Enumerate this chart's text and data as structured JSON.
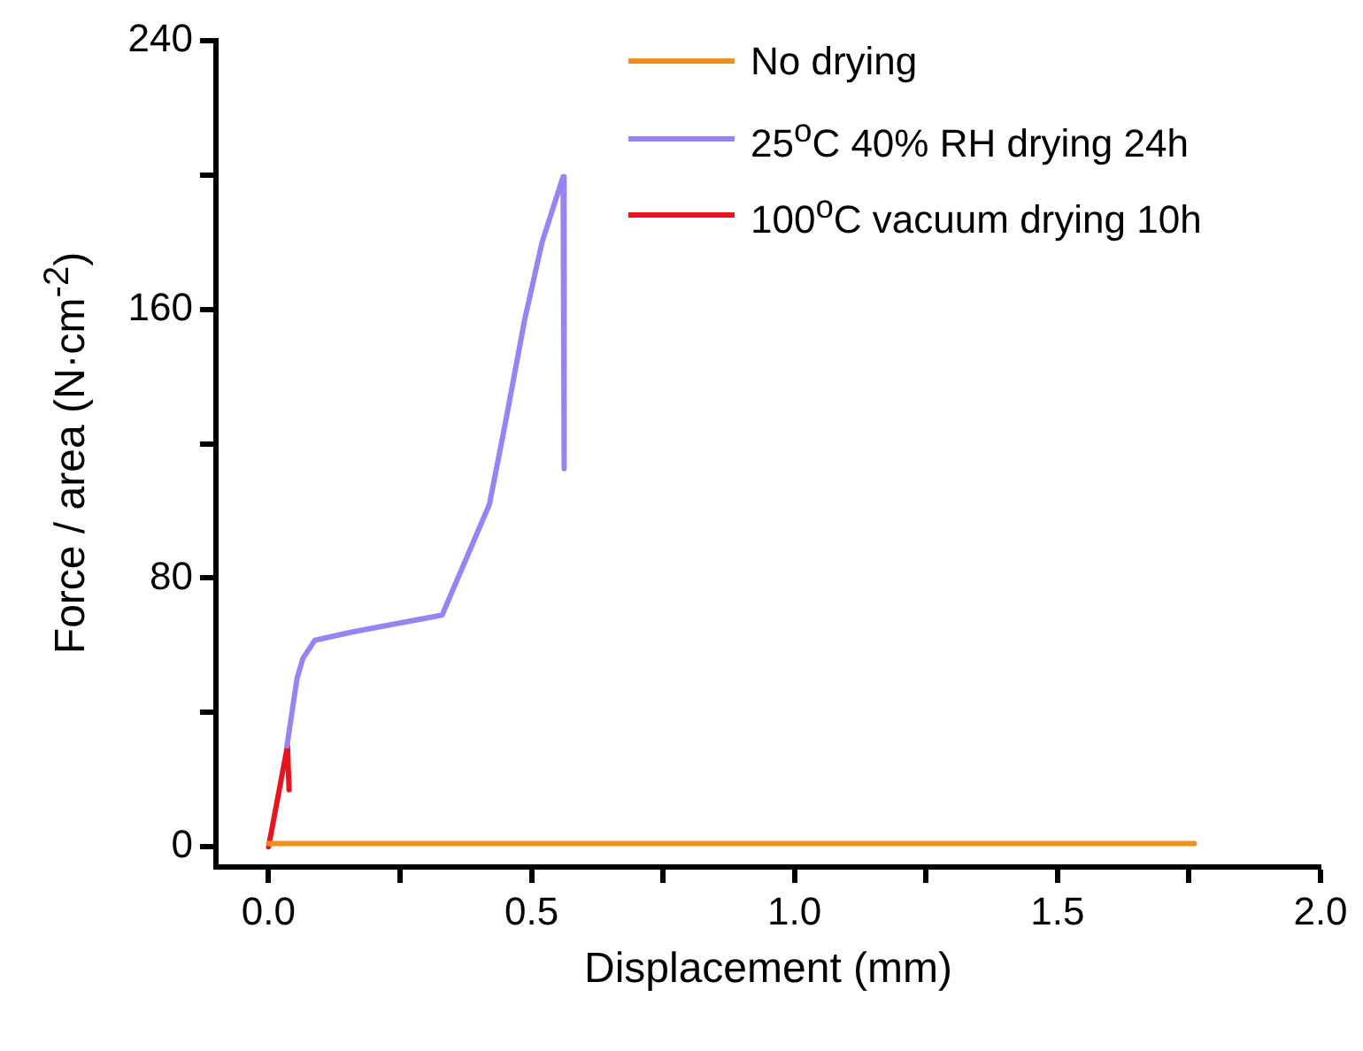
{
  "chart_data": {
    "type": "line",
    "xlabel": "Displacement (mm)",
    "ylabel": "Force / area (N·cm$^{-2}$)",
    "xlim": [
      -0.1,
      2.0
    ],
    "ylim": [
      -6,
      240
    ],
    "xticks": [
      {
        "value": 0,
        "label": "0.0"
      },
      {
        "value": 0.25,
        "label": null
      },
      {
        "value": 0.5,
        "label": "0.5"
      },
      {
        "value": 0.75,
        "label": null
      },
      {
        "value": 1,
        "label": "1.0"
      },
      {
        "value": 1.25,
        "label": null
      },
      {
        "value": 1.5,
        "label": "1.5"
      },
      {
        "value": 1.75,
        "label": null
      },
      {
        "value": 2,
        "label": "2.0"
      }
    ],
    "yticks": [
      0,
      {
        "value": 40,
        "label": null
      },
      80,
      {
        "value": 120,
        "label": null
      },
      160,
      {
        "value": 200,
        "label": null
      },
      240
    ],
    "legend": "top right",
    "series": [
      {
        "name": "No drying",
        "color": "#f0901a",
        "x": [
          0,
          1.76
        ],
        "values": [
          1,
          1
        ]
      },
      {
        "name": "25$^{o}$C 40% RH drying 24h",
        "color": "#9a82f5",
        "x": [
          0.035,
          0.054,
          0.065,
          0.088,
          0.16,
          0.33,
          0.42,
          0.45,
          0.487,
          0.52,
          0.56,
          0.562
        ],
        "values": [
          30,
          50,
          56,
          61.5,
          64,
          69,
          102,
          126,
          157,
          180,
          199.5,
          112.6
        ]
      },
      {
        "name": "100$^{o}$C vacuum drying 10h",
        "color": "#e8141e",
        "x": [
          0,
          0.036,
          0.039
        ],
        "values": [
          0,
          30,
          17
        ]
      }
    ]
  }
}
